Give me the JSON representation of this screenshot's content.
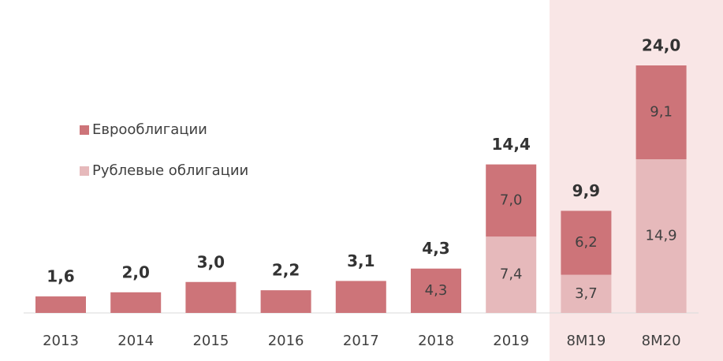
{
  "chart_data": {
    "type": "stacked_bar",
    "categories": [
      "2013",
      "2014",
      "2015",
      "2016",
      "2017",
      "2018",
      "2019",
      "8M19",
      "8M20"
    ],
    "series": [
      {
        "name": "Рублевые облигации",
        "color": "#e6b9bb",
        "values": [
          null,
          null,
          null,
          null,
          null,
          null,
          7.4,
          3.7,
          14.9
        ],
        "value_labels": [
          null,
          null,
          null,
          null,
          null,
          null,
          "7,4",
          "3,7",
          "14,9"
        ]
      },
      {
        "name": "Еврооблигации",
        "color": "#cd7479",
        "values": [
          1.6,
          2.0,
          3.0,
          2.2,
          3.1,
          4.3,
          7.0,
          6.2,
          9.1
        ],
        "value_labels": [
          null,
          null,
          null,
          null,
          null,
          "4,3",
          "7,0",
          "6,2",
          "9,1"
        ]
      }
    ],
    "totals": [
      1.6,
      2.0,
      3.0,
      2.2,
      3.1,
      4.3,
      14.4,
      9.9,
      24.0
    ],
    "total_labels": [
      "1,6",
      "2,0",
      "3,0",
      "2,2",
      "3,1",
      "4,3",
      "14,4",
      "9,9",
      "24,0"
    ]
  }
}
